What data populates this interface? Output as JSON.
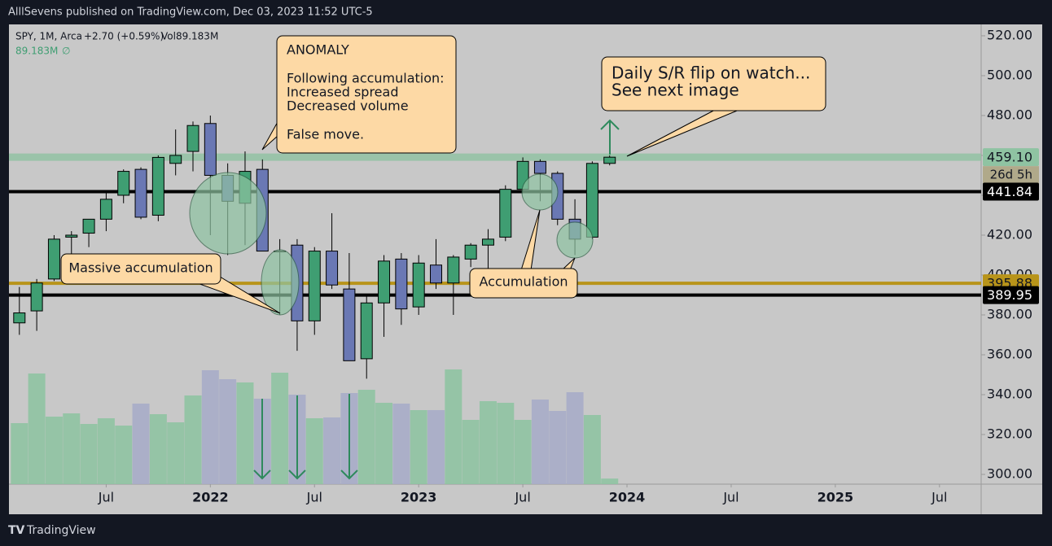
{
  "chart_data": {
    "type": "candlestick",
    "header": "AlllSevens published on TradingView.com, Dec 03, 2023 11:52 UTC-5",
    "legend": {
      "symbol": "SPY, 1M, Arca",
      "change": "+2.70 (+0.59%)",
      "volume": "Vol89.183M",
      "volume_value": "89.183M",
      "volume_ma": "∅"
    },
    "footer": "TradingView",
    "up_color": "#3f9e72",
    "down_color": "#6a78b4",
    "volume_up_color": "#8fc3a2",
    "volume_down_color": "#a7acc8",
    "open": [
      376,
      382,
      398,
      419,
      421,
      428,
      440,
      453,
      430,
      456,
      462,
      476,
      450,
      436,
      453,
      412,
      415,
      377,
      412,
      393,
      358,
      386,
      408,
      384,
      405,
      396,
      408,
      415,
      419,
      443,
      457,
      451,
      428,
      419,
      456
    ],
    "high": [
      394,
      398,
      420,
      422,
      428,
      442,
      453,
      454,
      460,
      473,
      477,
      480,
      456,
      462,
      458,
      418,
      418,
      414,
      431,
      411,
      390,
      410,
      411,
      410,
      418,
      410,
      416,
      423,
      445,
      459,
      458,
      452,
      438,
      457,
      460
    ],
    "low": [
      370,
      372,
      397,
      405,
      414,
      422,
      436,
      428,
      427,
      450,
      452,
      420,
      410,
      415,
      412,
      380,
      362,
      370,
      393,
      357,
      348,
      369,
      375,
      380,
      393,
      380,
      404,
      403,
      417,
      441,
      437,
      425,
      410,
      418,
      455
    ],
    "close": [
      381,
      396,
      418,
      420,
      428,
      438,
      452,
      429,
      459,
      460,
      475,
      450,
      437,
      452,
      412,
      412,
      377,
      412,
      395,
      357,
      386,
      407,
      383,
      406,
      396,
      409,
      415,
      418,
      443,
      457,
      451,
      428,
      418,
      456,
      459.1
    ],
    "volume": [
      975,
      1768,
      1079,
      1131,
      962,
      1053,
      936,
      1287,
      1118,
      988,
      1417,
      1820,
      1677,
      1625,
      1365,
      1781,
      1430,
      1053,
      1066,
      1456,
      1508,
      1300,
      1287,
      1183,
      1183,
      1833,
      1027,
      1326,
      1300,
      1027,
      1352,
      1170,
      1469,
      1105,
      89
    ],
    "ylim": [
      295.1,
      525.7
    ],
    "yticks": [
      {
        "value": 300,
        "label": "300.00"
      },
      {
        "value": 320,
        "label": "320.00"
      },
      {
        "value": 340,
        "label": "340.00"
      },
      {
        "value": 360,
        "label": "360.00"
      },
      {
        "value": 380,
        "label": "380.00"
      },
      {
        "value": 400,
        "label": "400.00"
      },
      {
        "value": 420,
        "label": "420.00"
      },
      {
        "value": 440,
        "label": "440.00"
      },
      {
        "value": 460,
        "label": "460.00"
      },
      {
        "value": 480,
        "label": "480.00"
      },
      {
        "value": 500,
        "label": "500.00"
      },
      {
        "value": 520,
        "label": "520.00"
      }
    ],
    "xlim": [
      -0.6,
      55.4
    ],
    "xticks": [
      {
        "value": 5,
        "label": "Jul"
      },
      {
        "value": 11,
        "label": "2022"
      },
      {
        "value": 17,
        "label": "Jul"
      },
      {
        "value": 23,
        "label": "2023"
      },
      {
        "value": 29,
        "label": "Jul"
      },
      {
        "value": 35,
        "label": "2024"
      },
      {
        "value": 41,
        "label": "Jul"
      },
      {
        "value": 47,
        "label": "2025"
      },
      {
        "value": 53,
        "label": "Jul"
      }
    ],
    "price_lines": [
      {
        "value": 459.1,
        "label": "459.10",
        "color": "#8fc3a2",
        "note": "26d 5h"
      },
      {
        "value": 441.84,
        "label": "441.84",
        "color": "#000000"
      },
      {
        "value": 395.88,
        "label": "395.88",
        "color": "#b8941a"
      },
      {
        "value": 389.95,
        "label": "389.95",
        "color": "#000000"
      }
    ],
    "annotations": [
      {
        "lines": [
          "ANOMALY",
          "Following accumulation:",
          "Increased spread",
          "Decreased volume",
          "False move."
        ]
      },
      {
        "lines": [
          "Daily S/R flip on watch...",
          "See next image"
        ]
      },
      {
        "lines": [
          "Massive accumulation"
        ]
      },
      {
        "lines": [
          "Accumulation"
        ]
      }
    ]
  }
}
